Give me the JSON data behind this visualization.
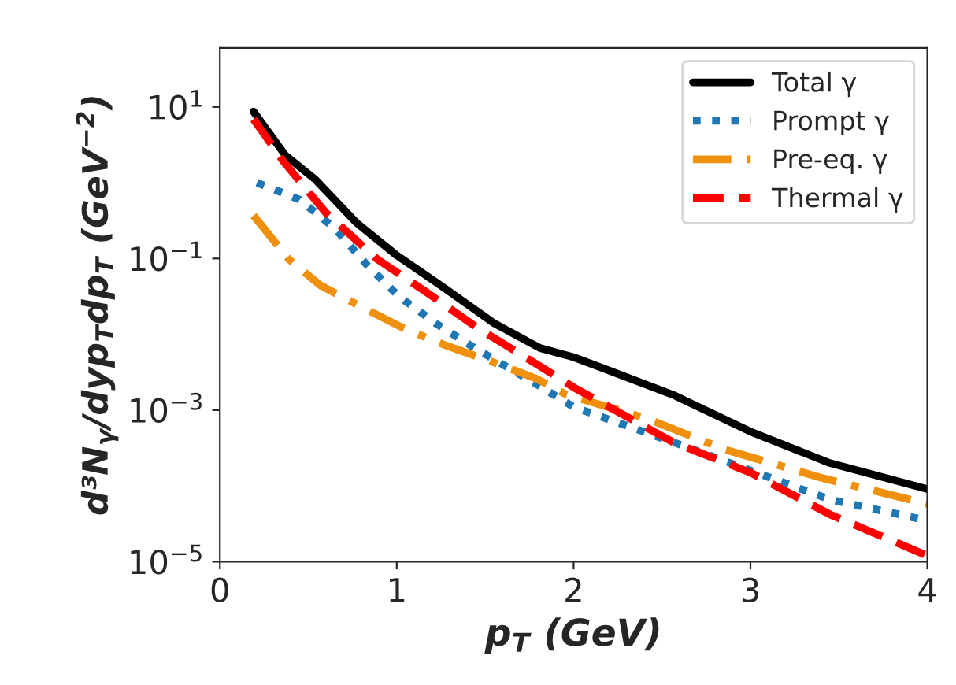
{
  "chart_data": {
    "type": "line",
    "xlabel": "p$_{T}$ (GeV)",
    "ylabel": "d³N$_{γ}$/dyp$_{T}$dp$_{T}$ (GeV$^{−2}$)",
    "log": "y",
    "xlim": [
      0,
      4
    ],
    "ylim": [
      1e-05,
      60
    ],
    "xticks": [
      0,
      1,
      2,
      3,
      4
    ],
    "yticks": [
      {
        "value": 10,
        "label": "10$^{1}$"
      },
      {
        "value": 0.1,
        "label": "10$^{−1}$"
      },
      {
        "value": 0.001,
        "label": "10$^{−3}$"
      },
      {
        "value": 1e-05,
        "label": "10$^{−5}$"
      }
    ],
    "grid": false,
    "legend": "top right",
    "series": [
      {
        "name": "Total γ",
        "color": "#000000",
        "line_style": "solid",
        "x": [
          0.19,
          0.37,
          0.54,
          0.77,
          1.0,
          1.25,
          1.55,
          1.81,
          2.0,
          2.56,
          3.0,
          3.45,
          4.0
        ],
        "values": [
          8.7,
          2.3,
          1.1,
          0.3,
          0.11,
          0.044,
          0.014,
          0.0066,
          0.005,
          0.0016,
          0.00052,
          0.0002,
          9.1e-05
        ]
      },
      {
        "name": "Prompt γ",
        "color": "#1f77b4",
        "line_style": "dotted",
        "x": [
          0.21,
          0.45,
          0.65,
          0.83,
          1.01,
          1.22,
          1.44,
          1.79,
          2.0,
          2.56,
          3.0,
          3.45,
          4.0
        ],
        "values": [
          1.0,
          0.6,
          0.25,
          0.083,
          0.032,
          0.014,
          0.0066,
          0.0022,
          0.0011,
          0.00038,
          0.00016,
          6.6e-05,
          3.5e-05
        ]
      },
      {
        "name": "Pre-eq. γ",
        "color": "#f0900f",
        "line_style": "dashdot",
        "x": [
          0.19,
          0.39,
          0.57,
          0.8,
          1.04,
          1.28,
          1.52,
          1.79,
          1.96,
          2.41,
          2.86,
          3.39,
          4.0
        ],
        "values": [
          0.37,
          0.098,
          0.044,
          0.023,
          0.012,
          0.0071,
          0.0045,
          0.0026,
          0.0016,
          0.00078,
          0.0003,
          0.00013,
          5.8e-05
        ]
      },
      {
        "name": "Thermal γ",
        "color": "#ff0000",
        "line_style": "dashed",
        "x": [
          0.19,
          0.36,
          0.6,
          0.89,
          1.16,
          1.46,
          1.81,
          2.0,
          2.56,
          3.0,
          3.45,
          4.0
        ],
        "values": [
          6.9,
          1.9,
          0.4,
          0.098,
          0.037,
          0.012,
          0.0038,
          0.002,
          0.00038,
          0.00015,
          4.2e-05,
          1.2e-05
        ]
      }
    ]
  }
}
